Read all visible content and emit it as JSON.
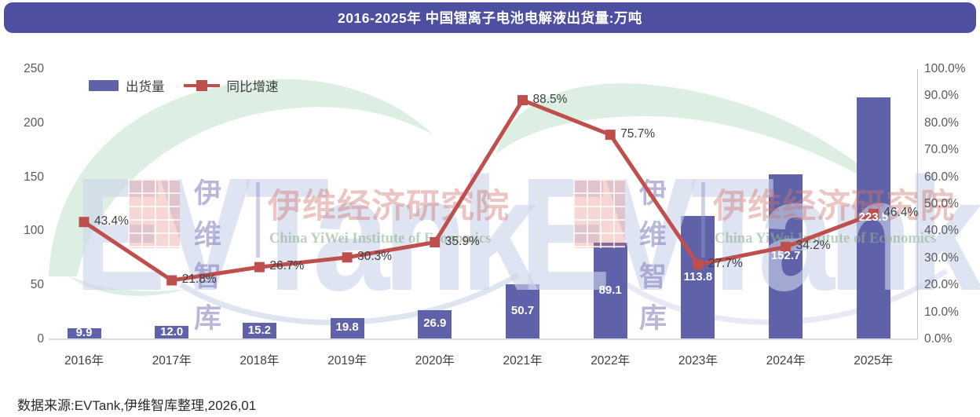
{
  "title": "2016-2025年 中国锂离子电池电解液出货量:万吨",
  "legend": {
    "bars": "出货量",
    "line": "同比增速"
  },
  "source": "数据来源:EVTank,伊维智库整理,2026,01",
  "watermark": {
    "logo_text": "EVTank",
    "cn_small": "伊维\n智库",
    "cn_large": "伊维经济研究院",
    "en": "China YiWei Institute of Economics"
  },
  "colors": {
    "title_bar": "#4e4fa0",
    "bar": "#6062a9",
    "line": "#bf4f4c",
    "swoosh": "#ddefe2"
  },
  "chart_data": {
    "type": "bar+line",
    "title": "2016-2025年 中国锂离子电池电解液出货量:万吨",
    "categories": [
      "2016年",
      "2017年",
      "2018年",
      "2019年",
      "2020年",
      "2021年",
      "2022年",
      "2023年",
      "2024年",
      "2025年"
    ],
    "series": [
      {
        "name": "出货量",
        "type": "bar",
        "axis": "left",
        "unit": "万吨",
        "values": [
          9.9,
          12.0,
          15.2,
          19.8,
          26.9,
          50.7,
          89.1,
          113.8,
          152.7,
          223.5
        ]
      },
      {
        "name": "同比增速",
        "type": "line",
        "axis": "right",
        "unit": "%",
        "values": [
          43.4,
          21.8,
          26.7,
          30.3,
          35.9,
          88.5,
          75.7,
          27.7,
          34.2,
          46.4
        ]
      }
    ],
    "left_axis": {
      "min": 0,
      "max": 250,
      "step": 50,
      "ticks": [
        "250",
        "200",
        "150",
        "100",
        "50",
        "0"
      ]
    },
    "right_axis": {
      "min": 0,
      "max": 100,
      "step": 10,
      "ticks": [
        "100.0%",
        "90.0%",
        "80.0%",
        "70.0%",
        "60.0%",
        "50.0%",
        "40.0%",
        "30.0%",
        "20.0%",
        "10.0%",
        "0.0%"
      ]
    },
    "grid": false,
    "legend_position": "top-left",
    "bar_labels_inside": true,
    "line_labels_right_of_marker": true
  }
}
